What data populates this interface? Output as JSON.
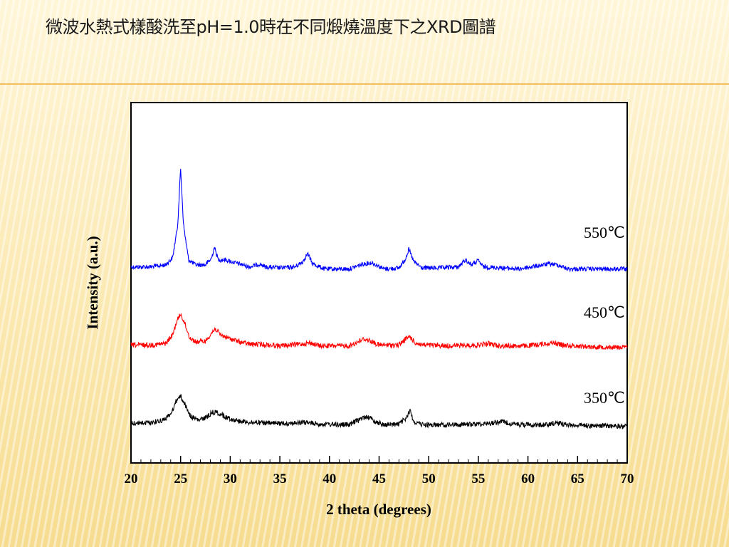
{
  "slide": {
    "title": "微波水熱式樣酸洗至pH=1.0時在不同煅燒溫度下之XRD圖譜"
  },
  "chart_data": {
    "type": "line",
    "xlabel": "2 theta (degrees)",
    "ylabel": "Intensity (a.u.)",
    "xlim": [
      20,
      70
    ],
    "xticks": [
      20,
      25,
      30,
      35,
      40,
      45,
      50,
      55,
      60,
      65,
      70
    ],
    "grid": false,
    "series": [
      {
        "name": "550℃",
        "color": "#0000ff",
        "points": [
          [
            20,
            5
          ],
          [
            22,
            5
          ],
          [
            23.5,
            7
          ],
          [
            24.2,
            14
          ],
          [
            24.7,
            45
          ],
          [
            25.0,
            100
          ],
          [
            25.3,
            45
          ],
          [
            25.8,
            12
          ],
          [
            26.5,
            7
          ],
          [
            27.5,
            7
          ],
          [
            28.1,
            13
          ],
          [
            28.4,
            24
          ],
          [
            28.8,
            12
          ],
          [
            29.5,
            12
          ],
          [
            30.5,
            9
          ],
          [
            32,
            5
          ],
          [
            33,
            8
          ],
          [
            33.5,
            5
          ],
          [
            35,
            4
          ],
          [
            36.5,
            5
          ],
          [
            37.3,
            10
          ],
          [
            37.8,
            18
          ],
          [
            38.3,
            8
          ],
          [
            39.5,
            3
          ],
          [
            42,
            3
          ],
          [
            43.4,
            8
          ],
          [
            44.3,
            9
          ],
          [
            45.5,
            3
          ],
          [
            47,
            4
          ],
          [
            47.6,
            12
          ],
          [
            48.0,
            22
          ],
          [
            48.5,
            10
          ],
          [
            49.3,
            4
          ],
          [
            51,
            4
          ],
          [
            53,
            5
          ],
          [
            53.7,
            12
          ],
          [
            54.3,
            7
          ],
          [
            55,
            11
          ],
          [
            55.5,
            5
          ],
          [
            57.5,
            4
          ],
          [
            59,
            3
          ],
          [
            62.2,
            8
          ],
          [
            63,
            7
          ],
          [
            64,
            3
          ],
          [
            67,
            3
          ],
          [
            70,
            3
          ]
        ]
      },
      {
        "name": "450℃",
        "color": "#ff0000",
        "points": [
          [
            20,
            5
          ],
          [
            22,
            5
          ],
          [
            23.5,
            7
          ],
          [
            24.2,
            18
          ],
          [
            24.6,
            35
          ],
          [
            25.0,
            45
          ],
          [
            25.4,
            33
          ],
          [
            25.9,
            15
          ],
          [
            26.5,
            9
          ],
          [
            27.5,
            10
          ],
          [
            28.1,
            20
          ],
          [
            28.5,
            26
          ],
          [
            29,
            18
          ],
          [
            30,
            13
          ],
          [
            31,
            9
          ],
          [
            32,
            6
          ],
          [
            33,
            6
          ],
          [
            35,
            4
          ],
          [
            37,
            6
          ],
          [
            38,
            8
          ],
          [
            39,
            4
          ],
          [
            42,
            4
          ],
          [
            43.5,
            13
          ],
          [
            44,
            11
          ],
          [
            45,
            5
          ],
          [
            47,
            5
          ],
          [
            47.7,
            13
          ],
          [
            48.1,
            16
          ],
          [
            48.6,
            8
          ],
          [
            49.5,
            5
          ],
          [
            52,
            4
          ],
          [
            55,
            5
          ],
          [
            56,
            7
          ],
          [
            57,
            4
          ],
          [
            60,
            4
          ],
          [
            62.5,
            8
          ],
          [
            63.5,
            5
          ],
          [
            66,
            3
          ],
          [
            70,
            2
          ]
        ]
      },
      {
        "name": "350℃",
        "color": "#000000",
        "points": [
          [
            20,
            7
          ],
          [
            22,
            8
          ],
          [
            23.2,
            11
          ],
          [
            24,
            18
          ],
          [
            24.6,
            37
          ],
          [
            25.0,
            42
          ],
          [
            25.4,
            32
          ],
          [
            26,
            16
          ],
          [
            26.8,
            11
          ],
          [
            27.5,
            14
          ],
          [
            28.2,
            21
          ],
          [
            28.7,
            21
          ],
          [
            29.5,
            15
          ],
          [
            30.5,
            11
          ],
          [
            32,
            8
          ],
          [
            34,
            7
          ],
          [
            36,
            7
          ],
          [
            37.7,
            8
          ],
          [
            39,
            6
          ],
          [
            42,
            5
          ],
          [
            43.2,
            13
          ],
          [
            43.8,
            16
          ],
          [
            44.5,
            10
          ],
          [
            45.5,
            5
          ],
          [
            47,
            6
          ],
          [
            47.8,
            14
          ],
          [
            48.1,
            24
          ],
          [
            48.5,
            9
          ],
          [
            49.5,
            5
          ],
          [
            52,
            5
          ],
          [
            55,
            6
          ],
          [
            56,
            7
          ],
          [
            57.5,
            9
          ],
          [
            58.5,
            6
          ],
          [
            60,
            5
          ],
          [
            62,
            5
          ],
          [
            62.8,
            8
          ],
          [
            64,
            5
          ],
          [
            67,
            4
          ],
          [
            70,
            3
          ]
        ]
      }
    ]
  }
}
